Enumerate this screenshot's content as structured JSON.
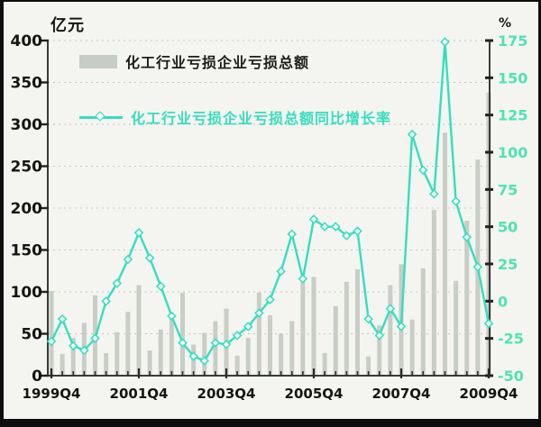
{
  "units": {
    "left": "亿元",
    "right": "%"
  },
  "legend": {
    "bars": {
      "label": "化工行业亏损企业亏损总额"
    },
    "line": {
      "label": "化工行业亏损企业亏损总额同比增长率"
    }
  },
  "colors": {
    "bar": "#c8cdc6",
    "line": "#35debe",
    "marker_fill": "#f0fdf8",
    "right_axis_text": "#4fe2b4",
    "axis": "#3a3a3a",
    "grid": "#c4c4bf",
    "dark_text": "#151515",
    "background": "#f4f4f0"
  },
  "chart_data": {
    "type": "bar+line",
    "title": "",
    "x_tick_labels": [
      "1999Q4",
      "2001Q4",
      "2003Q4",
      "2005Q4",
      "2007Q4",
      "2009Q4"
    ],
    "quarters": [
      "1999Q4",
      "2000Q1",
      "2000Q2",
      "2000Q3",
      "2000Q4",
      "2001Q1",
      "2001Q2",
      "2001Q3",
      "2001Q4",
      "2002Q1",
      "2002Q2",
      "2002Q3",
      "2002Q4",
      "2003Q1",
      "2003Q2",
      "2003Q3",
      "2003Q4",
      "2004Q1",
      "2004Q2",
      "2004Q3",
      "2004Q4",
      "2005Q1",
      "2005Q2",
      "2005Q3",
      "2005Q4",
      "2006Q1",
      "2006Q2",
      "2006Q3",
      "2006Q4",
      "2007Q1",
      "2007Q2",
      "2007Q3",
      "2007Q4",
      "2008Q1",
      "2008Q2",
      "2008Q3",
      "2008Q4",
      "2009Q1",
      "2009Q2",
      "2009Q3",
      "2009Q4"
    ],
    "series": [
      {
        "name": "化工行业亏损企业亏损总额",
        "type": "bar",
        "axis": "left",
        "unit": "亿元",
        "values": [
          101,
          26,
          45,
          63,
          96,
          27,
          52,
          76,
          108,
          30,
          55,
          75,
          99,
          37,
          51,
          65,
          80,
          24,
          45,
          99,
          72,
          50,
          65,
          112,
          118,
          27,
          83,
          112,
          127,
          23,
          60,
          108,
          133,
          67,
          128,
          198,
          290,
          113,
          185,
          258,
          338
        ]
      },
      {
        "name": "化工行业亏损企业亏损总额同比增长率",
        "type": "line",
        "axis": "right",
        "unit": "%",
        "values": [
          -27,
          -12,
          -30,
          -33,
          -25,
          0,
          12,
          28,
          46,
          29,
          10,
          -10,
          -28,
          -37,
          -40,
          -28,
          -29,
          -23,
          -17,
          -8,
          1,
          20,
          45,
          15,
          55,
          50,
          50,
          44,
          47,
          -12,
          -23,
          -5,
          -17,
          112,
          88,
          72,
          174,
          67,
          43,
          23,
          -15
        ]
      }
    ],
    "left_axis": {
      "label": "亿元",
      "min": 0,
      "max": 400,
      "step": 50,
      "ticks": [
        400,
        350,
        300,
        250,
        200,
        150,
        100,
        50,
        0
      ]
    },
    "right_axis": {
      "label": "%",
      "min": -50,
      "max": 175,
      "step": 25,
      "ticks": [
        175,
        150,
        125,
        100,
        75,
        50,
        25,
        0,
        -25,
        -50
      ]
    },
    "grid": "horizontal dotted lines at every 50 of left axis",
    "legend_position": "top-left inside plot"
  }
}
